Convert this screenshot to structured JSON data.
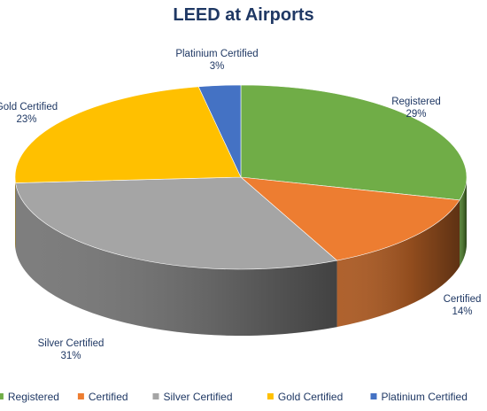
{
  "chart_data": {
    "type": "pie",
    "title": "LEED at Airports",
    "categories": [
      "Registered",
      "Certified",
      "Silver Certified",
      "Gold Certified",
      "Platinium Certified"
    ],
    "values": [
      29,
      14,
      31,
      23,
      3
    ],
    "value_labels": [
      "29%",
      "14%",
      "31%",
      "23%",
      "3%"
    ],
    "colors": [
      "#70ad47",
      "#ed7d31",
      "#a5a5a5",
      "#ffc000",
      "#4472c4"
    ],
    "legend_position": "bottom",
    "style": "3d"
  }
}
